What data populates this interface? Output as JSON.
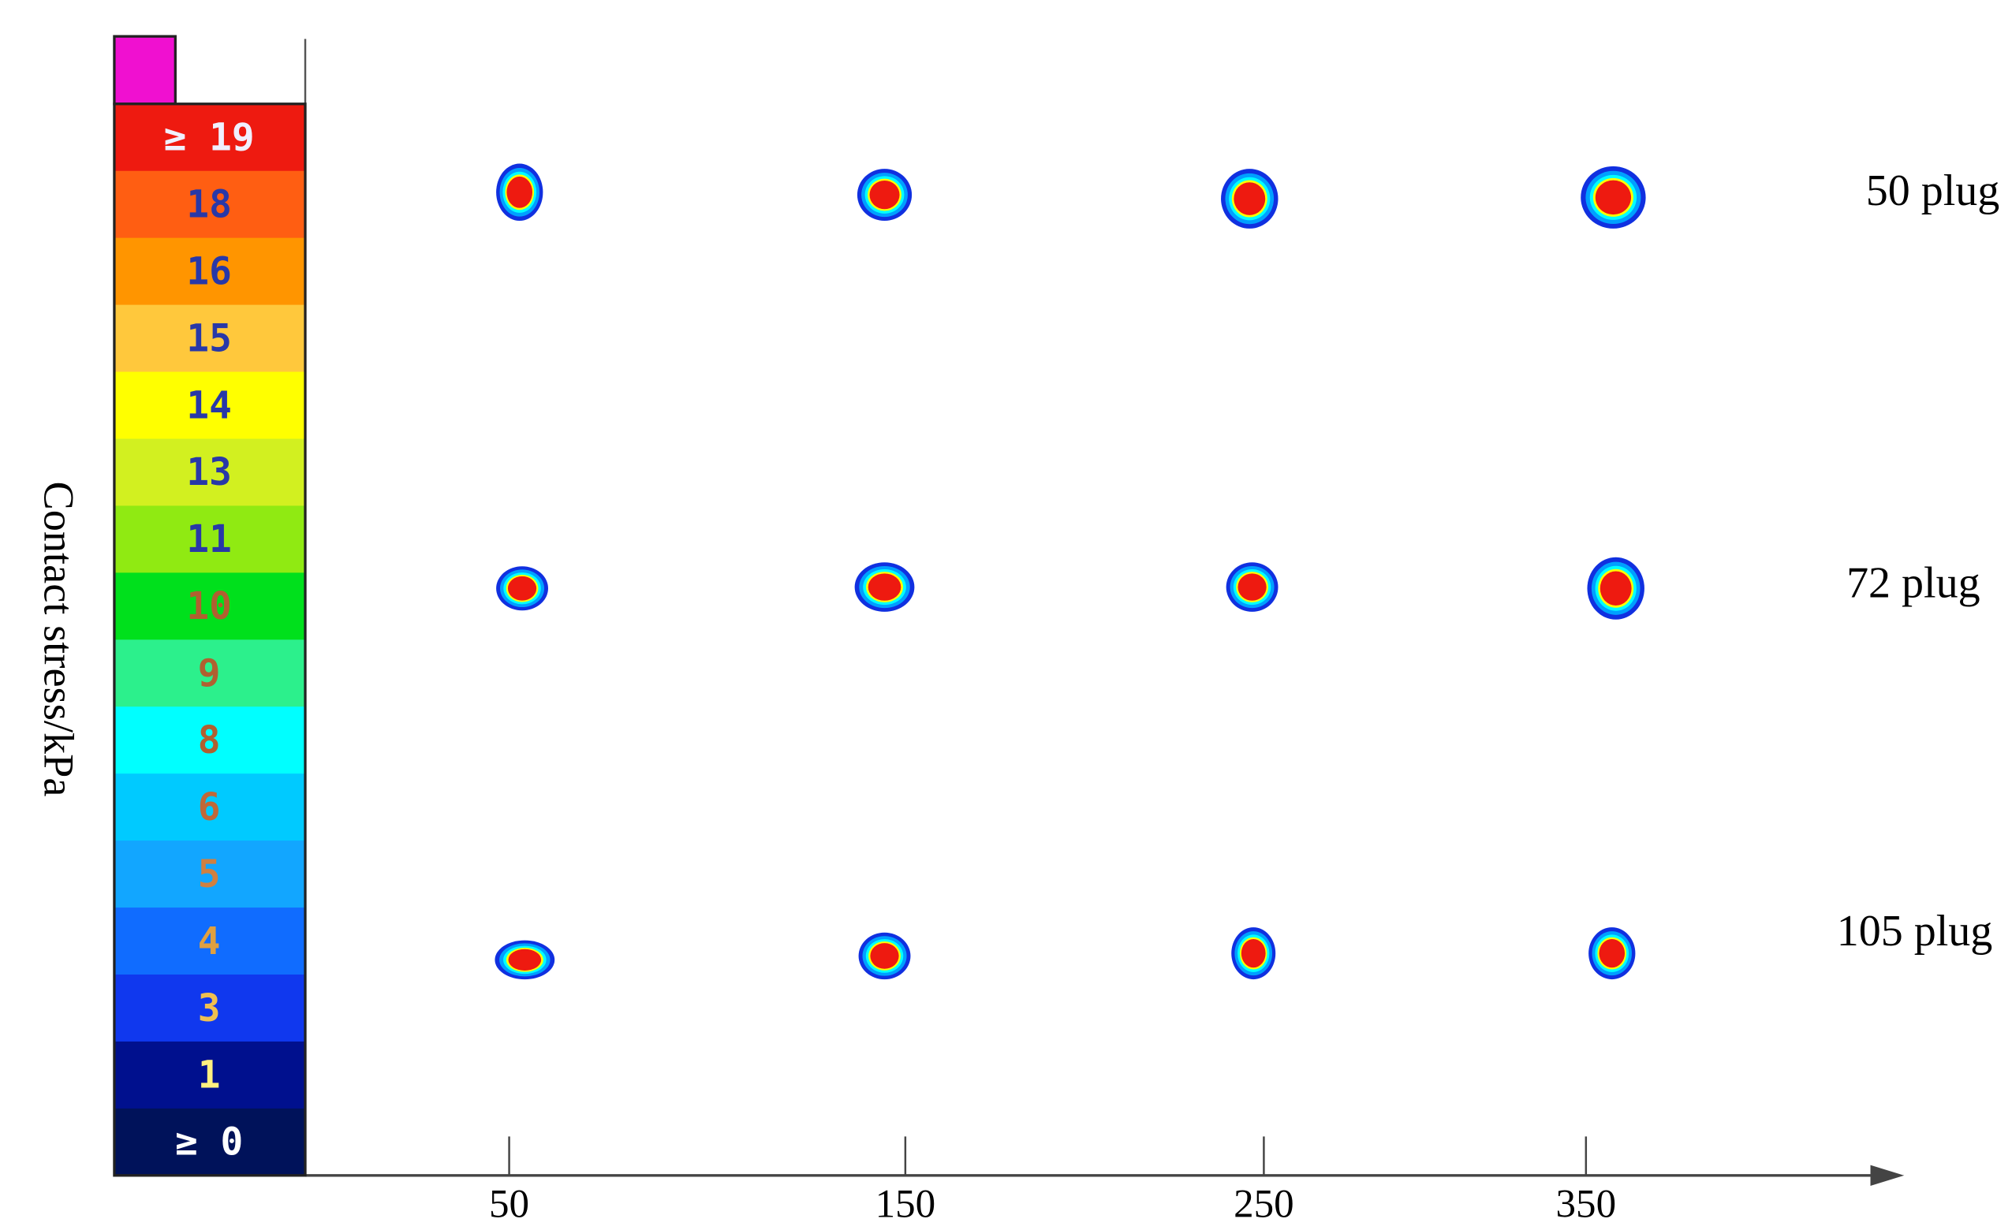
{
  "chart_data": {
    "type": "contour",
    "y_label": "Contact stress/kPa",
    "categories": [
      "50",
      "150",
      "250",
      "350"
    ],
    "rows": [
      "50 plug",
      "72 plug",
      "105 plug"
    ],
    "over_color": "#f010d0",
    "colorbar": {
      "labels": [
        "≥ 19",
        "18",
        "16",
        "15",
        "14",
        "13",
        "11",
        "10",
        "9",
        "8",
        "6",
        "5",
        "4",
        "3",
        "1",
        "≥ 0"
      ],
      "colors": [
        "#ee1a10",
        "#ff5e12",
        "#ff9500",
        "#ffc83c",
        "#ffff00",
        "#d2f020",
        "#90ea12",
        "#00e01c",
        "#2cf08c",
        "#00ffff",
        "#00caff",
        "#12a6ff",
        "#106cff",
        "#1038ee",
        "#00108e",
        "#00125a"
      ],
      "label_colors": [
        "#f0f0ff",
        "#2838a8",
        "#2838a8",
        "#2838a8",
        "#2838a8",
        "#2838a8",
        "#2838a8",
        "#b06030",
        "#b06030",
        "#b06030",
        "#c06838",
        "#d08040",
        "#e0a040",
        "#f0c050",
        "#fff080",
        "#ffffff"
      ]
    }
  }
}
